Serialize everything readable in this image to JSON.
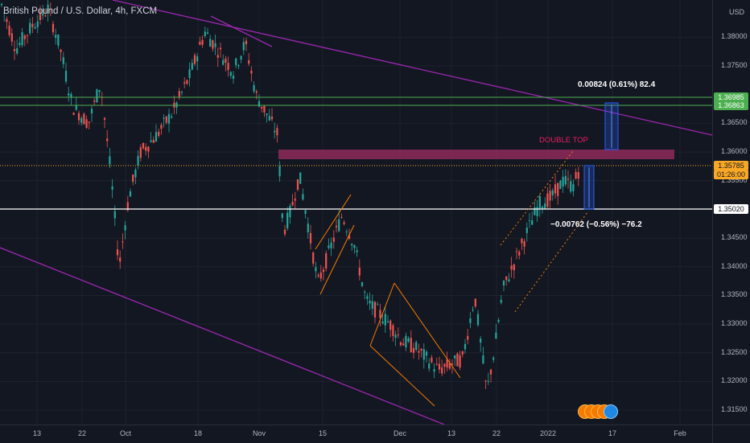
{
  "header": {
    "symbol_text": "British Pound / U.S. Dollar, 4h, FXCM"
  },
  "price_axis": {
    "currency": "USD",
    "min": 1.3125,
    "max": 1.3865,
    "labels": [
      "1.38000",
      "1.37500",
      "1.36500",
      "1.36000",
      "1.35500",
      "1.34500",
      "1.34000",
      "1.33500",
      "1.33000",
      "1.32500",
      "1.32000",
      "1.31500"
    ],
    "tags": [
      {
        "name": "upper-level-tag",
        "text": "1.36985",
        "bg": "#4caf50",
        "fg": "#ffffff"
      },
      {
        "name": "lower-level-tag",
        "text": "1.36863",
        "bg": "#4caf50",
        "fg": "#ffffff"
      },
      {
        "name": "current-price-tag",
        "text": "1.35785",
        "bg": "#f9a825",
        "fg": "#131722"
      },
      {
        "name": "countdown-tag",
        "text": "01:26:00",
        "bg": "#f9a825",
        "fg": "#131722"
      },
      {
        "name": "support-tag",
        "text": "1.35020",
        "bg": "#ffffff",
        "fg": "#131722"
      }
    ]
  },
  "time_axis": {
    "labels": [
      "13",
      "22",
      "Oct",
      "18",
      "Nov",
      "15",
      "Dec",
      "13",
      "22",
      "2022",
      "17",
      "Feb"
    ]
  },
  "annotations": {
    "measure_up": "0.00824 (0.61%) 82.4",
    "measure_down": "−0.00762 (−0.56%) −76.2",
    "double_top": "DOUBLE TOP"
  },
  "colors": {
    "background": "#131722",
    "candle_up": "#26a69a",
    "candle_down": "#ef5350",
    "trendline": "#9c27b0",
    "channel": "#f57c00",
    "zone": "#8e2a5a",
    "level": "#4caf50",
    "measure": "#2962ff"
  },
  "icons": {
    "news": "news-flag-icon"
  }
}
